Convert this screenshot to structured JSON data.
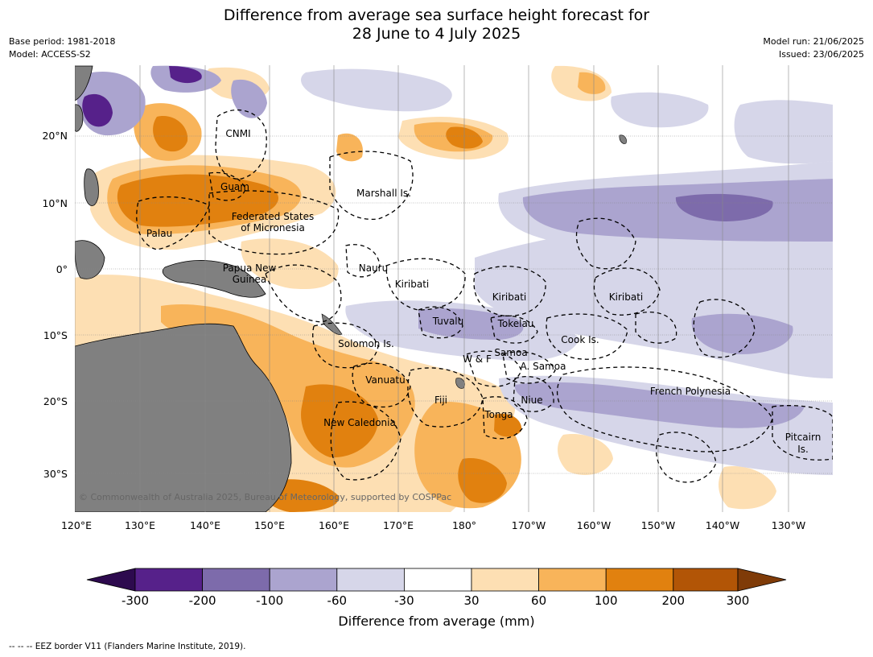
{
  "title": {
    "line1": "Difference from average sea surface height forecast for",
    "line2": "28 June to 4 July 2025"
  },
  "meta_left": {
    "base_period": "Base period: 1981-2018",
    "model": "Model: ACCESS-S2"
  },
  "meta_right": {
    "model_run": "Model run: 21/06/2025",
    "issued": "Issued: 23/06/2025"
  },
  "lat_labels": [
    "20°N",
    "10°N",
    "0°",
    "10°S",
    "20°S",
    "30°S"
  ],
  "lon_labels": [
    "120°E",
    "130°E",
    "140°E",
    "150°E",
    "160°E",
    "170°E",
    "180°",
    "170°W",
    "160°W",
    "150°W",
    "140°W",
    "130°W"
  ],
  "regions": {
    "cnmi": "CNMI",
    "guam": "Guam",
    "marshall": "Marshall Is.",
    "fsm1": "Federated States",
    "fsm2": "of Micronesia",
    "palau": "Palau",
    "png1": "Papua New",
    "png2": "Guinea",
    "nauru": "Nauru",
    "kiribati_w": "Kiribati",
    "kiribati_c": "Kiribati",
    "kiribati_e": "Kiribati",
    "tuvalu": "Tuvalu",
    "tokelau": "Tokelau",
    "solomon": "Solomon Is.",
    "cook": "Cook Is.",
    "samoa": "Samoa",
    "wf": "W & F",
    "asamoa": "A. Samoa",
    "vanuatu": "Vanuatu",
    "fiji": "Fiji",
    "niue": "Niue",
    "tonga": "Tonga",
    "frpoly": "French Polynesia",
    "newcal": "New Caledonia",
    "pitcairn1": "Pitcairn",
    "pitcairn2": "Is."
  },
  "copyright": "© Commonwealth of Australia 2025, Bureau of Meteorology, supported by COSPPac",
  "colorbar": {
    "ticks": [
      "-300",
      "-200",
      "-100",
      "-60",
      "-30",
      "30",
      "60",
      "100",
      "200",
      "300"
    ],
    "colors": [
      "#2d0a4e",
      "#56218a",
      "#7d6bab",
      "#aba4cf",
      "#d6d6e9",
      "#ffffff",
      "#fddfb3",
      "#f8b45a",
      "#e1810f",
      "#b25506",
      "#7f3b08"
    ],
    "label": "Difference from average (mm)"
  },
  "land_color": "#808080",
  "footnote": "--  --  -- EEZ border V11 (Flanders Marine Institute, 2019)."
}
